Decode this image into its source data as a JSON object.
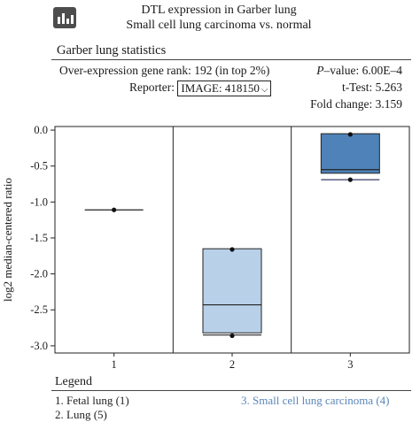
{
  "header": {
    "title_line1": "DTL expression in Garber lung",
    "title_line2": "Small cell lung carcinoma vs. normal",
    "icon": "bar-chart-icon"
  },
  "stats": {
    "section_title": "Garber lung statistics",
    "rank_text": "Over-expression gene rank: 192 (in top 2%)",
    "reporter_label": "Reporter:",
    "reporter_value": "IMAGE: 418150",
    "p_label": "P",
    "p_value_text": "–value: 6.00E–4",
    "ttest_text": "t-Test: 5.263",
    "fold_text": "Fold change: 3.159"
  },
  "legend": {
    "title": "Legend",
    "items": [
      {
        "label": "1. Fetal lung (1)",
        "color": "#222222"
      },
      {
        "label": "2. Lung (5)",
        "color": "#222222"
      },
      {
        "label": "3. Small cell lung carcinoma (4)",
        "color": "#5b86b8"
      }
    ]
  },
  "chart_data": {
    "type": "box",
    "ylabel": "log2 median-centered ratio",
    "xlabel": "",
    "ylim": [
      -3.1,
      0.05
    ],
    "yticks": [
      0.0,
      -0.5,
      -1.0,
      -1.5,
      -2.0,
      -2.5,
      -3.0
    ],
    "yticklabels": [
      "0.0",
      "-0.5",
      "-1.0",
      "-1.5",
      "-2.0",
      "-2.5",
      "-3.0"
    ],
    "categories": [
      "1",
      "2",
      "3"
    ],
    "boxes": [
      {
        "category": "1",
        "median": -1.11,
        "points": [
          -1.11
        ],
        "fill": null
      },
      {
        "category": "2",
        "q1": -2.82,
        "q3": -1.65,
        "median": -2.43,
        "whisker_low": -2.85,
        "whisker_high": -1.65,
        "points": [
          -1.66,
          -2.86
        ],
        "fill": "#b8d0e8"
      },
      {
        "category": "3",
        "q1": -0.6,
        "q3": -0.05,
        "median": -0.55,
        "whisker_low": -0.69,
        "whisker_high": -0.05,
        "points": [
          -0.06,
          -0.69
        ],
        "fill": "#4f82b8"
      }
    ]
  }
}
